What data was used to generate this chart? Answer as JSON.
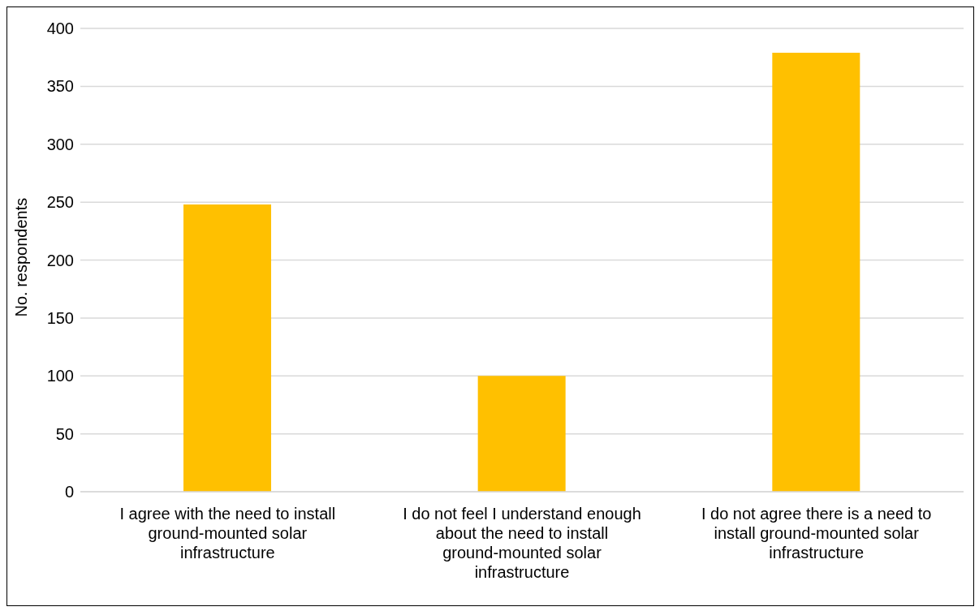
{
  "chart_data": {
    "type": "bar",
    "ylabel": "No. respondents",
    "categories": [
      "I agree with the need to install ground-mounted solar infrastructure",
      "I do not feel I understand enough about the need to install ground-mounted solar infrastructure",
      "I do not agree there is a need to install ground-mounted solar infrastructure"
    ],
    "values": [
      248,
      100,
      379
    ],
    "color": "#ffc000",
    "ylim": [
      0,
      400
    ],
    "yticks": [
      0,
      50,
      100,
      150,
      200,
      250,
      300,
      350,
      400
    ],
    "grid": "y"
  }
}
